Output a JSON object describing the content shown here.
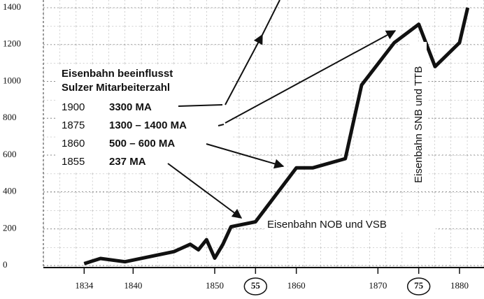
{
  "chart_data": {
    "type": "line",
    "annotations": {
      "heading": [
        "Eisenbahn beeinflusst",
        "Sulzer Mitarbeiterzahl"
      ],
      "rows": [
        [
          "1900",
          "3300 MA"
        ],
        [
          "1875",
          "1300 – 1400 MA"
        ],
        [
          "1860",
          "500 – 600 MA"
        ],
        [
          "1855",
          "237 MA"
        ]
      ],
      "nob": "Eisenbahn NOB und VSB",
      "snb": "Eisenbahn SNB und TTB"
    },
    "x": [
      1834,
      1836,
      1839,
      1845,
      1847,
      1848,
      1849,
      1850,
      1851,
      1852,
      1855,
      1860,
      1862,
      1866,
      1868,
      1872,
      1875,
      1877,
      1880,
      1881
    ],
    "series": [
      {
        "color": "#111111",
        "values": [
          10,
          38,
          20,
          75,
          115,
          85,
          140,
          40,
          115,
          210,
          237,
          530,
          530,
          580,
          980,
          1210,
          1310,
          1080,
          1210,
          1400
        ]
      }
    ],
    "xlim": [
      1829,
      1883
    ],
    "ylim": [
      0,
      1400
    ],
    "xticks": [
      1834,
      1840,
      1850,
      {
        "value": 1855,
        "label": "55"
      },
      1860,
      1870,
      {
        "value": 1875,
        "label": "75"
      },
      1880
    ],
    "yticks": [
      0,
      200,
      400,
      600,
      800,
      1000,
      1200,
      1400
    ],
    "grid": true
  }
}
